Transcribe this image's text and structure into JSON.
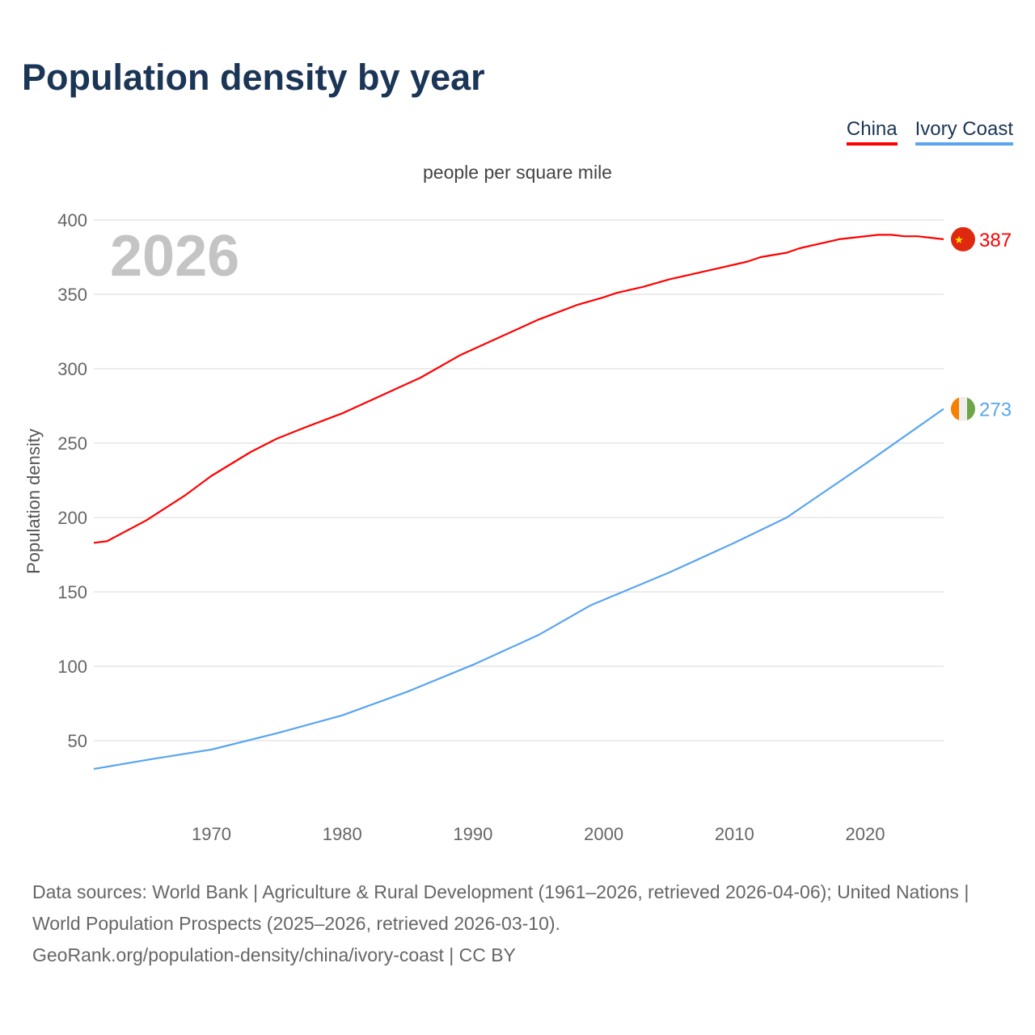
{
  "title": "Population density by year",
  "legend": [
    {
      "label": "China",
      "color": "#ff0000"
    },
    {
      "label": "Ivory Coast",
      "color": "#5aa5ef"
    }
  ],
  "chart_data": {
    "type": "line",
    "title": "Population density by year",
    "subtitle": "people per square mile",
    "ylabel": "Population density",
    "xlabel": "",
    "year_watermark": "2026",
    "xlim": [
      1961,
      2026
    ],
    "ylim": [
      0,
      400
    ],
    "yticks": [
      50,
      100,
      150,
      200,
      250,
      300,
      350,
      400
    ],
    "xticks": [
      1970,
      1980,
      1990,
      2000,
      2010,
      2020
    ],
    "grid": true,
    "series": [
      {
        "name": "China",
        "color": "#ff0000",
        "end_label": "387",
        "flag": "china-flag",
        "x": [
          1961,
          1962,
          1965,
          1968,
          1970,
          1973,
          1975,
          1977,
          1980,
          1983,
          1986,
          1989,
          1992,
          1995,
          1998,
          2000,
          2001,
          2003,
          2005,
          2008,
          2011,
          2012,
          2014,
          2015,
          2018,
          2021,
          2022,
          2023,
          2024,
          2026
        ],
        "y": [
          183,
          184,
          198,
          215,
          228,
          244,
          253,
          260,
          270,
          282,
          294,
          309,
          321,
          333,
          343,
          348,
          351,
          355,
          360,
          366,
          372,
          375,
          378,
          381,
          387,
          390,
          390,
          389,
          389,
          387
        ]
      },
      {
        "name": "Ivory Coast",
        "color": "#5aa5ef",
        "end_label": "273",
        "flag": "ivory-coast-flag",
        "x": [
          1961,
          1965,
          1970,
          1975,
          1980,
          1985,
          1990,
          1995,
          1999,
          2005,
          2010,
          2014,
          2020,
          2026
        ],
        "y": [
          31,
          37,
          44,
          55,
          67,
          83,
          101,
          121,
          141,
          163,
          183,
          200,
          236,
          273
        ]
      }
    ]
  },
  "footer": {
    "line1": "Data sources: World Bank | Agriculture & Rural Development (1961–2026, retrieved 2026-04-06); United Nations | World Population Prospects (2025–2026, retrieved 2026-03-10).",
    "line2": "GeoRank.org/population-density/china/ivory-coast | CC BY"
  }
}
